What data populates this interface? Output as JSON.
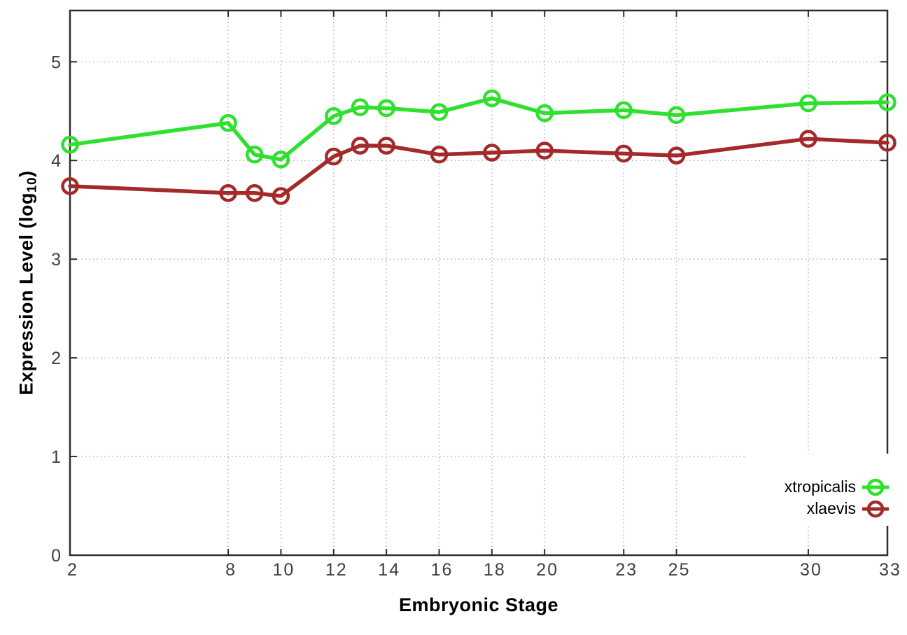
{
  "chart_data": {
    "type": "line",
    "title": "",
    "xlabel": "Embryonic Stage",
    "ylabel": {
      "prefix": "Expression Level (log",
      "sub": "10",
      "suffix": ")"
    },
    "x": [
      2,
      8,
      9,
      10,
      12,
      13,
      14,
      16,
      18,
      20,
      23,
      25,
      30,
      33
    ],
    "series": [
      {
        "name": "xtropicalis",
        "color": "#2fe02f",
        "values": [
          4.16,
          4.38,
          4.06,
          4.01,
          4.45,
          4.54,
          4.53,
          4.49,
          4.63,
          4.48,
          4.51,
          4.46,
          4.58,
          4.59
        ]
      },
      {
        "name": "xlaevis",
        "color": "#a42a2a",
        "values": [
          3.74,
          3.67,
          3.67,
          3.64,
          4.04,
          4.15,
          4.15,
          4.06,
          4.08,
          4.1,
          4.07,
          4.05,
          4.22,
          4.18
        ]
      }
    ],
    "x_ticks": [
      2,
      8,
      10,
      12,
      14,
      16,
      18,
      20,
      23,
      25,
      30,
      33
    ],
    "x_tick_labels": [
      "2",
      "8",
      "10",
      "12",
      "14",
      "16",
      "18",
      "20",
      "23",
      "25",
      "30",
      "33"
    ],
    "y_ticks": [
      0,
      1,
      2,
      3,
      4,
      5
    ],
    "y_tick_labels": [
      "0",
      "1",
      "2",
      "3",
      "4",
      "5"
    ],
    "xlim": [
      2,
      33
    ],
    "ylim": [
      0,
      5.52
    ],
    "grid": true,
    "grid_style": "dotted",
    "legend_position": "bottom-right",
    "colors": {
      "grid": "#b5b5b5",
      "axis": "#2e2e2e",
      "tick_label": "#404040",
      "title": "#000000",
      "background": "#ffffff"
    }
  }
}
